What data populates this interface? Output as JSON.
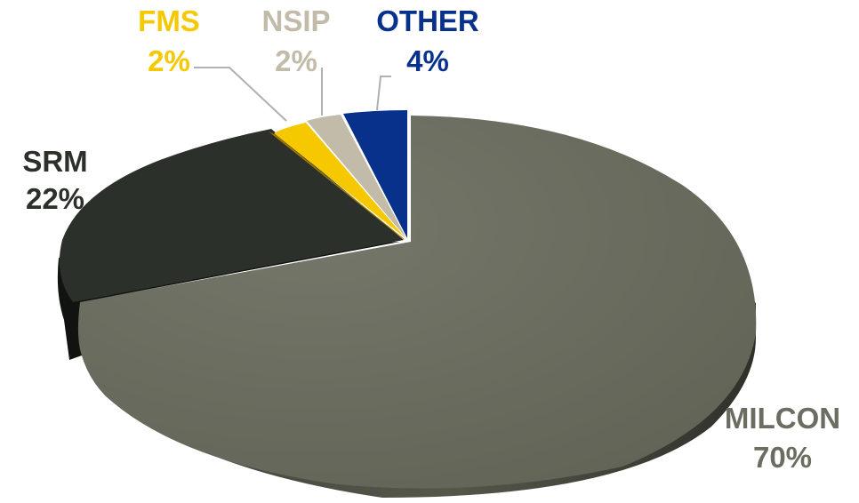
{
  "chart_data": {
    "type": "pie",
    "title": "",
    "legend": "none",
    "slices": [
      {
        "label": "MILCON",
        "percent_label": "70%",
        "value": 70,
        "color": "#6b6d60",
        "label_color": "#6b6d60"
      },
      {
        "label": "SRM",
        "percent_label": "22%",
        "value": 22,
        "color": "#2c302a",
        "label_color": "#2c302a"
      },
      {
        "label": "FMS",
        "percent_label": "2%",
        "value": 2,
        "color": "#f5c800",
        "label_color": "#f5c800"
      },
      {
        "label": "NSIP",
        "percent_label": "2%",
        "value": 2,
        "color": "#c3bba9",
        "label_color": "#c3bba9"
      },
      {
        "label": "OTHER",
        "percent_label": "4%",
        "value": 4,
        "color": "#08318c",
        "label_color": "#08318c"
      }
    ]
  }
}
